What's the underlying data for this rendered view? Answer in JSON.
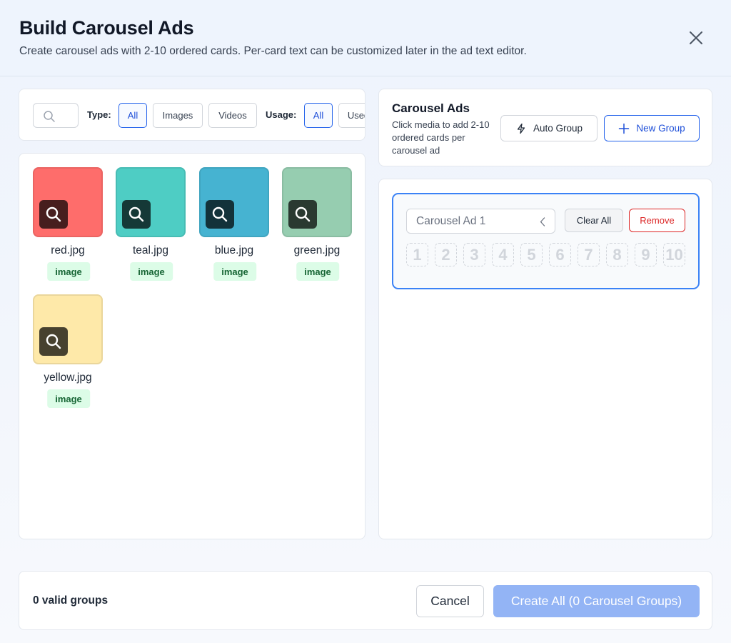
{
  "header": {
    "title": "Build Carousel Ads",
    "subtitle": "Create carousel ads with 2-10 ordered cards. Per-card text can be customized later in the ad text editor."
  },
  "filters": {
    "search_placeholder": "",
    "type_label": "Type:",
    "type_options": [
      "All",
      "Images",
      "Videos"
    ],
    "type_selected": "All",
    "usage_label": "Usage:",
    "usage_options": [
      "All",
      "Used"
    ],
    "usage_selected": "All"
  },
  "media": [
    {
      "name": "red.jpg",
      "type": "image",
      "color": "#fe6d6b"
    },
    {
      "name": "teal.jpg",
      "type": "image",
      "color": "#4ecdc4"
    },
    {
      "name": "blue.jpg",
      "type": "image",
      "color": "#46b3d1"
    },
    {
      "name": "green.jpg",
      "type": "image",
      "color": "#96cdb0"
    },
    {
      "name": "yellow.jpg",
      "type": "image",
      "color": "#fee9a9"
    }
  ],
  "ads": {
    "title": "Carousel Ads",
    "description": "Click media to add 2-10 ordered cards per carousel ad",
    "auto_group_label": "Auto Group",
    "new_group_label": "New Group"
  },
  "groups": [
    {
      "name": "Carousel Ad 1",
      "clear_label": "Clear All",
      "remove_label": "Remove",
      "slots": [
        "1",
        "2",
        "3",
        "4",
        "5",
        "6",
        "7",
        "8",
        "9",
        "10"
      ]
    }
  ],
  "footer": {
    "status": "0 valid groups",
    "cancel_label": "Cancel",
    "create_label": "Create All (0 Carousel Groups)"
  },
  "colors": {
    "accent": "#2563eb",
    "danger": "#dc2626",
    "badge_bg": "#dcfce7",
    "create_disabled": "#93b4f5"
  }
}
